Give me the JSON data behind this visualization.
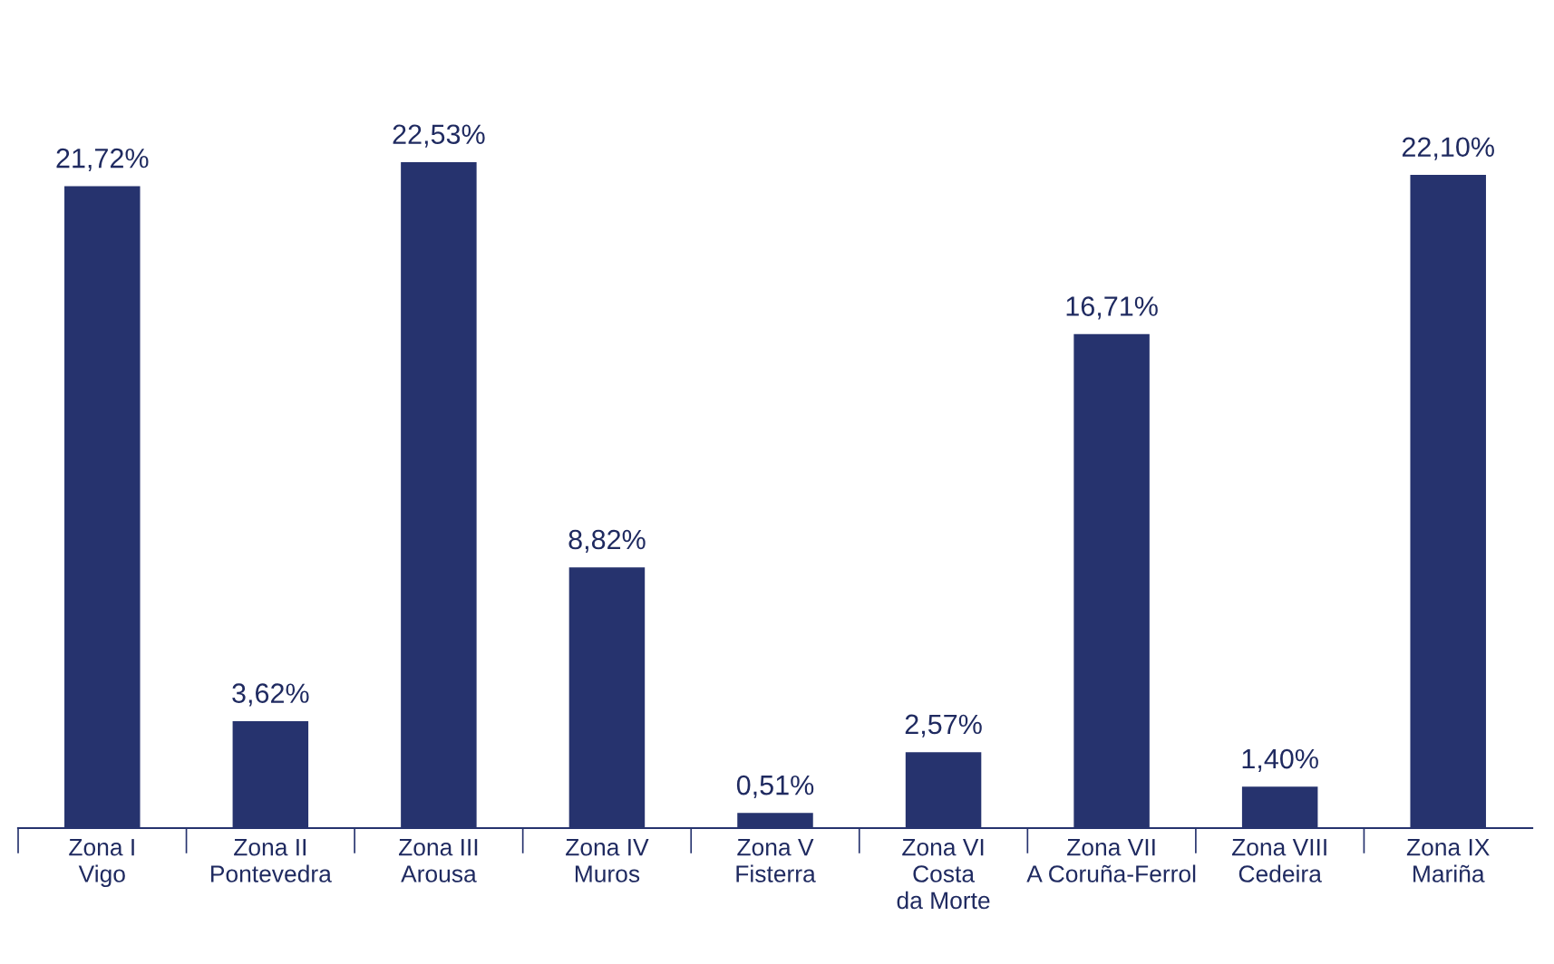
{
  "chart_data": {
    "type": "bar",
    "categories": [
      "Zona I\nVigo",
      "Zona II\nPontevedra",
      "Zona III\nArousa",
      "Zona IV\nMuros",
      "Zona V\nFisterra",
      "Zona VI\nCosta\nda Morte",
      "Zona VII\nA Coruña-Ferrol",
      "Zona VIII\nCedeira",
      "Zona IX\nMariña"
    ],
    "values": [
      21.72,
      3.62,
      22.53,
      8.82,
      0.51,
      2.57,
      16.71,
      1.4,
      22.1
    ],
    "value_labels": [
      "21,72%",
      "3,62%",
      "22,53%",
      "8,82%",
      "0,51%",
      "2,57%",
      "16,71%",
      "1,40%",
      "22,10%"
    ],
    "color": "#26336e",
    "grid": false,
    "legend": false
  }
}
